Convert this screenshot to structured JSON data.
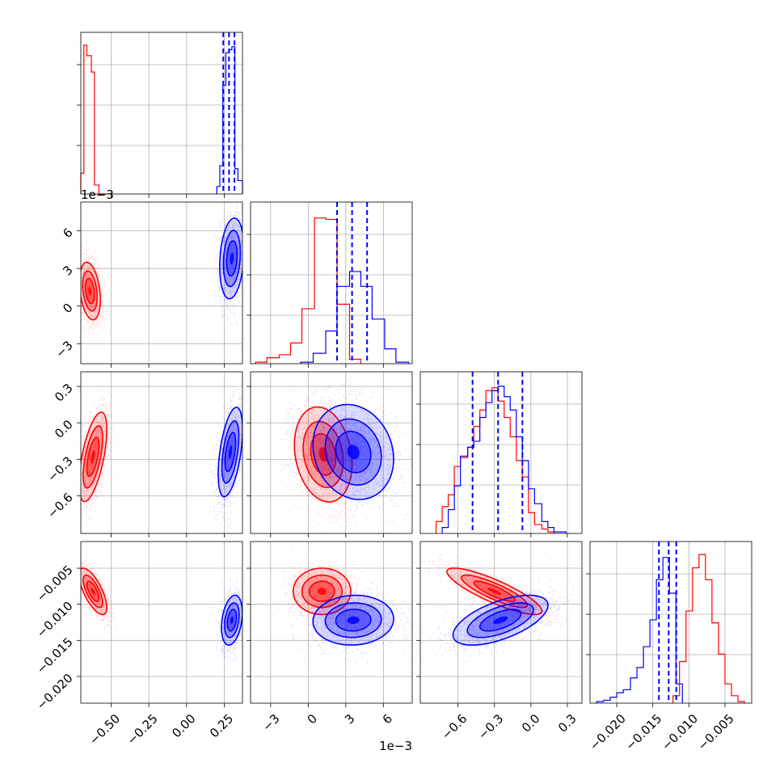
{
  "chart_data": {
    "type": "corner",
    "grid": true,
    "colors": {
      "red": "#ff0000",
      "blue": "#0000ff"
    },
    "params": [
      {
        "id": "p1",
        "range": [
          -0.7,
          0.37
        ],
        "ticks": [
          -0.5,
          -0.25,
          0.0,
          0.25
        ],
        "tick_labels": [
          "−0.50",
          "−0.25",
          "0.00",
          "0.25"
        ],
        "offset_text": ""
      },
      {
        "id": "p2",
        "range": [
          -4.6,
          8.3
        ],
        "ticks": [
          -3,
          0,
          3,
          6
        ],
        "tick_labels": [
          "−3",
          "0",
          "3",
          "6"
        ],
        "offset_text": "1e−3"
      },
      {
        "id": "p3",
        "range": [
          -0.91,
          0.42
        ],
        "ticks": [
          -0.6,
          -0.3,
          0.0,
          0.3
        ],
        "tick_labels": [
          "−0.6",
          "−0.3",
          "0.0",
          "0.3"
        ],
        "offset_text": ""
      },
      {
        "id": "p4",
        "range": [
          -0.0237,
          -0.0013
        ],
        "ticks": [
          -0.02,
          -0.015,
          -0.01,
          -0.005
        ],
        "tick_labels": [
          "−0.020",
          "−0.015",
          "−0.010",
          "−0.005"
        ],
        "offset_text": ""
      }
    ],
    "marginals": [
      {
        "param": 0,
        "red": {
          "edges": [
            -0.7,
            -0.68,
            -0.66,
            -0.63,
            -0.61,
            -0.58,
            -0.56,
            -0.54,
            -0.52
          ],
          "counts": [
            0.14,
            1.0,
            0.93,
            0.82,
            0.06,
            0.0,
            0.0,
            0.0
          ]
        },
        "blue": {
          "edges": [
            0.2,
            0.22,
            0.24,
            0.26,
            0.28,
            0.3,
            0.32,
            0.34,
            0.37
          ],
          "counts": [
            0.05,
            0.19,
            0.73,
            0.95,
            0.97,
            0.99,
            0.17,
            0.09
          ]
        },
        "quantiles": [
          0.243,
          0.281,
          0.317
        ]
      },
      {
        "param": 1,
        "red": {
          "edges": [
            -4.2,
            -3.3,
            -2.3,
            -1.4,
            -0.5,
            0.5,
            1.4,
            2.3,
            3.3,
            4.2
          ],
          "counts": [
            0.01,
            0.04,
            0.06,
            0.14,
            0.37,
            0.98,
            0.97,
            0.4,
            0.03
          ]
        },
        "blue": {
          "edges": [
            -0.6,
            0.4,
            1.4,
            2.3,
            3.3,
            4.2,
            5.1,
            6.1,
            7.0,
            8.0
          ],
          "counts": [
            0.01,
            0.07,
            0.22,
            0.52,
            0.62,
            0.52,
            0.3,
            0.1,
            0.01
          ]
        },
        "quantiles": [
          2.3,
          3.5,
          4.7
        ]
      },
      {
        "param": 2,
        "red": {
          "edges": [
            -0.78,
            -0.73,
            -0.68,
            -0.63,
            -0.58,
            -0.52,
            -0.47,
            -0.42,
            -0.37,
            -0.32,
            -0.27,
            -0.22,
            -0.17,
            -0.12,
            -0.07,
            -0.02,
            0.03,
            0.09,
            0.14,
            0.19
          ],
          "counts": [
            0.08,
            0.18,
            0.26,
            0.45,
            0.51,
            0.58,
            0.72,
            0.83,
            0.96,
            0.98,
            0.89,
            0.78,
            0.65,
            0.49,
            0.38,
            0.14,
            0.06,
            0.03,
            0.01
          ]
        },
        "blue": {
          "edges": [
            -0.73,
            -0.68,
            -0.63,
            -0.58,
            -0.52,
            -0.47,
            -0.42,
            -0.37,
            -0.32,
            -0.27,
            -0.22,
            -0.17,
            -0.12,
            -0.07,
            -0.02,
            0.03,
            0.09,
            0.14,
            0.19,
            0.24,
            0.29
          ],
          "counts": [
            0.04,
            0.16,
            0.32,
            0.52,
            0.58,
            0.62,
            0.78,
            0.88,
            0.96,
            0.99,
            0.92,
            0.83,
            0.65,
            0.49,
            0.3,
            0.2,
            0.08,
            0.04,
            0.01,
            0.01
          ]
        },
        "quantiles": [
          -0.48,
          -0.27,
          -0.07
        ]
      },
      {
        "param": 3,
        "red": {
          "edges": [
            -0.0122,
            -0.0113,
            -0.0104,
            -0.0095,
            -0.0086,
            -0.0077,
            -0.0068,
            -0.0059,
            -0.005,
            -0.0041,
            -0.0032,
            -0.0023
          ],
          "counts": [
            0.05,
            0.28,
            0.62,
            0.91,
            1.0,
            0.83,
            0.54,
            0.33,
            0.13,
            0.05,
            0.01
          ]
        },
        "blue": {
          "edges": [
            -0.0228,
            -0.0218,
            -0.0209,
            -0.02,
            -0.0191,
            -0.0181,
            -0.0172,
            -0.0163,
            -0.0154,
            -0.0145,
            -0.0136,
            -0.0127,
            -0.0118,
            -0.0109
          ],
          "counts": [
            0.01,
            0.02,
            0.04,
            0.07,
            0.09,
            0.17,
            0.24,
            0.38,
            0.56,
            0.83,
            0.98,
            0.74,
            0.13
          ]
        },
        "quantiles": [
          -0.01415,
          -0.0128,
          -0.01175
        ]
      }
    ],
    "pairs": [
      {
        "x": 0,
        "y": 1,
        "red": {
          "cx": -0.64,
          "cy": 1.2,
          "sx": 0.03,
          "sy": 1.0,
          "rho": -0.3
        },
        "blue": {
          "cx": 0.3,
          "cy": 3.8,
          "sx": 0.035,
          "sy": 1.4,
          "rho": 0.2
        }
      },
      {
        "x": 0,
        "y": 2,
        "red": {
          "cx": -0.62,
          "cy": -0.28,
          "sx": 0.04,
          "sy": 0.16,
          "rho": 0.6
        },
        "blue": {
          "cx": 0.29,
          "cy": -0.24,
          "sx": 0.035,
          "sy": 0.16,
          "rho": 0.5
        }
      },
      {
        "x": 0,
        "y": 3,
        "red": {
          "cx": -0.62,
          "cy": -0.0082,
          "sx": 0.04,
          "sy": 0.0014,
          "rho": -0.7
        },
        "blue": {
          "cx": 0.3,
          "cy": -0.0122,
          "sx": 0.03,
          "sy": 0.0015,
          "rho": 0.3
        }
      },
      {
        "x": 1,
        "y": 2,
        "red": {
          "cx": 1.2,
          "cy": -0.26,
          "sx": 1.0,
          "sy": 0.17,
          "rho": -0.2
        },
        "blue": {
          "cx": 3.6,
          "cy": -0.24,
          "sx": 1.4,
          "sy": 0.17,
          "rho": -0.15
        }
      },
      {
        "x": 1,
        "y": 3,
        "red": {
          "cx": 1.1,
          "cy": -0.0082,
          "sx": 1.0,
          "sy": 0.0014,
          "rho": 0.0
        },
        "blue": {
          "cx": 3.6,
          "cy": -0.0122,
          "sx": 1.4,
          "sy": 0.0015,
          "rho": 0.05
        }
      },
      {
        "x": 2,
        "y": 3,
        "red": {
          "cx": -0.3,
          "cy": -0.0082,
          "sx": 0.17,
          "sy": 0.0014,
          "rho": -0.85
        },
        "blue": {
          "cx": -0.25,
          "cy": -0.0122,
          "sx": 0.17,
          "sy": 0.0015,
          "rho": 0.6
        }
      }
    ]
  }
}
